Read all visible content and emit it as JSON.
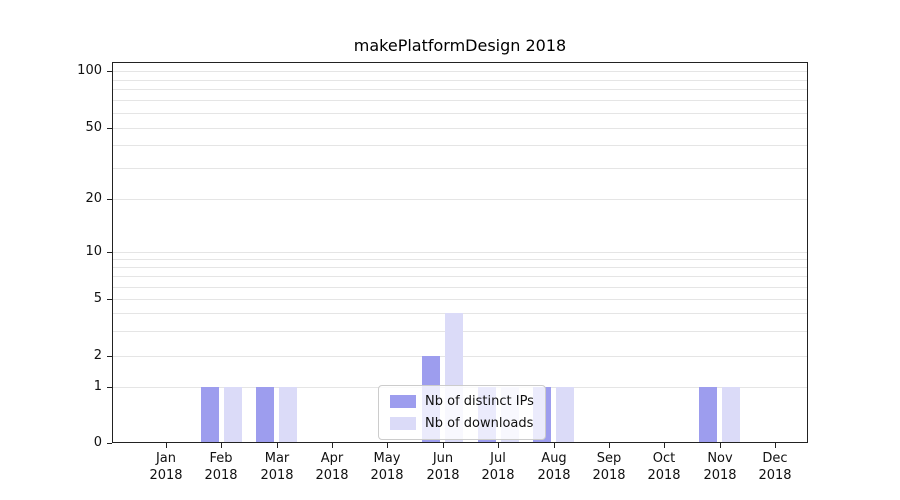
{
  "title": "makePlatformDesign 2018",
  "chart_data": {
    "type": "bar",
    "title": "makePlatformDesign 2018",
    "categories": [
      "Jan 2018",
      "Feb 2018",
      "Mar 2018",
      "Apr 2018",
      "May 2018",
      "Jun 2018",
      "Jul 2018",
      "Aug 2018",
      "Sep 2018",
      "Oct 2018",
      "Nov 2018",
      "Dec 2018"
    ],
    "series": [
      {
        "name": "Nb of distinct IPs",
        "color": "#9d9dee",
        "values": [
          0,
          1,
          1,
          0,
          0,
          2,
          1,
          1,
          0,
          0,
          1,
          0
        ]
      },
      {
        "name": "Nb of downloads",
        "color": "#dbdbf8",
        "values": [
          0,
          1,
          1,
          0,
          0,
          4,
          1,
          1,
          0,
          0,
          1,
          0
        ]
      }
    ],
    "xlabel": "",
    "ylabel": "",
    "yscale": "symlog",
    "ylim": [
      0,
      100
    ],
    "yticks": [
      0,
      1,
      2,
      5,
      10,
      20,
      50,
      100
    ],
    "y_gridlines": [
      1,
      2,
      3,
      4,
      5,
      6,
      7,
      8,
      9,
      10,
      20,
      30,
      40,
      50,
      60,
      70,
      80,
      90,
      100
    ],
    "grid": true,
    "legend_position": "lower center"
  }
}
